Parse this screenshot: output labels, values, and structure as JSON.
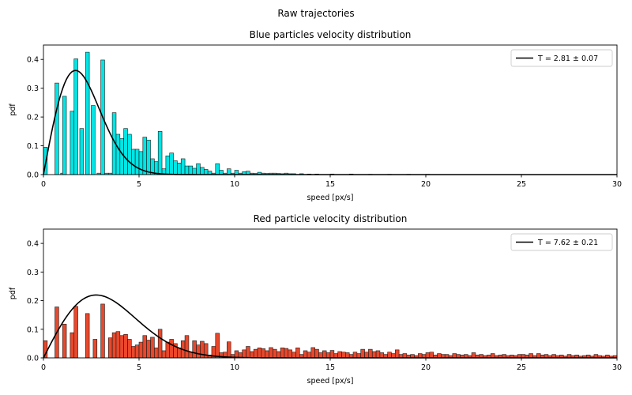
{
  "figure": {
    "title": "Raw trajectories"
  },
  "chart_data": [
    {
      "type": "bar",
      "title": "Blue particles velocity distribution",
      "xlabel": "speed [px/s]",
      "ylabel": "pdf",
      "xlim": [
        0,
        30
      ],
      "ylim": [
        0,
        0.45
      ],
      "xticks": [
        "0",
        "5",
        "10",
        "15",
        "20",
        "25",
        "30"
      ],
      "yticks": [
        "0.0",
        "0.1",
        "0.2",
        "0.3",
        "0.4"
      ],
      "bar_color": "#00e5e5",
      "bin_width": 0.2,
      "bins": [
        [
          0.0,
          0.095
        ],
        [
          0.6,
          0.318
        ],
        [
          0.9,
          0.005
        ],
        [
          1.0,
          0.272
        ],
        [
          1.4,
          0.22
        ],
        [
          1.6,
          0.402
        ],
        [
          1.9,
          0.16
        ],
        [
          2.2,
          0.425
        ],
        [
          2.5,
          0.24
        ],
        [
          2.8,
          0.005
        ],
        [
          3.0,
          0.398
        ],
        [
          3.2,
          0.005
        ],
        [
          3.4,
          0.005
        ],
        [
          3.6,
          0.215
        ],
        [
          3.8,
          0.14
        ],
        [
          4.0,
          0.125
        ],
        [
          4.2,
          0.16
        ],
        [
          4.4,
          0.14
        ],
        [
          4.6,
          0.088
        ],
        [
          4.8,
          0.088
        ],
        [
          5.0,
          0.08
        ],
        [
          5.2,
          0.13
        ],
        [
          5.4,
          0.12
        ],
        [
          5.6,
          0.055
        ],
        [
          5.8,
          0.045
        ],
        [
          6.0,
          0.15
        ],
        [
          6.2,
          0.02
        ],
        [
          6.4,
          0.065
        ],
        [
          6.6,
          0.075
        ],
        [
          6.8,
          0.048
        ],
        [
          7.0,
          0.04
        ],
        [
          7.2,
          0.055
        ],
        [
          7.4,
          0.03
        ],
        [
          7.6,
          0.03
        ],
        [
          7.8,
          0.022
        ],
        [
          8.0,
          0.038
        ],
        [
          8.2,
          0.025
        ],
        [
          8.4,
          0.018
        ],
        [
          8.6,
          0.012
        ],
        [
          8.8,
          0.005
        ],
        [
          9.0,
          0.038
        ],
        [
          9.2,
          0.015
        ],
        [
          9.4,
          0.005
        ],
        [
          9.6,
          0.02
        ],
        [
          9.8,
          0.005
        ],
        [
          10.0,
          0.015
        ],
        [
          10.2,
          0.005
        ],
        [
          10.4,
          0.01
        ],
        [
          10.6,
          0.012
        ],
        [
          10.8,
          0.005
        ],
        [
          11.0,
          0.004
        ],
        [
          11.2,
          0.008
        ],
        [
          11.4,
          0.005
        ],
        [
          11.6,
          0.004
        ],
        [
          11.8,
          0.005
        ],
        [
          12.0,
          0.005
        ],
        [
          12.2,
          0.004
        ],
        [
          12.4,
          0.003
        ],
        [
          12.6,
          0.005
        ],
        [
          12.8,
          0.003
        ],
        [
          13.0,
          0.003
        ],
        [
          13.4,
          0.003
        ],
        [
          13.8,
          0.002
        ],
        [
          14.2,
          0.002
        ],
        [
          15.0,
          0.002
        ],
        [
          16.0,
          0.002
        ],
        [
          17.0,
          0.001
        ],
        [
          18.0,
          0.001
        ],
        [
          19.0,
          0.001
        ],
        [
          20.0,
          0.001
        ]
      ],
      "fit": {
        "T": 2.81,
        "legend_label": "T = 2.81 ± 0.07",
        "legend_pos": "upper right"
      }
    },
    {
      "type": "bar",
      "title": "Red particle velocity distribution",
      "xlabel": "speed [px/s]",
      "ylabel": "pdf",
      "xlim": [
        0,
        30
      ],
      "ylim": [
        0,
        0.45
      ],
      "xticks": [
        "0",
        "5",
        "10",
        "15",
        "20",
        "25",
        "30"
      ],
      "yticks": [
        "0.0",
        "0.1",
        "0.2",
        "0.3",
        "0.4"
      ],
      "bar_color": "#e8482c",
      "bin_width": 0.2,
      "bins": [
        [
          0.0,
          0.06
        ],
        [
          0.6,
          0.178
        ],
        [
          1.0,
          0.118
        ],
        [
          1.4,
          0.088
        ],
        [
          1.6,
          0.18
        ],
        [
          2.2,
          0.155
        ],
        [
          2.6,
          0.065
        ],
        [
          3.0,
          0.188
        ],
        [
          3.4,
          0.07
        ],
        [
          3.6,
          0.088
        ],
        [
          3.8,
          0.092
        ],
        [
          4.0,
          0.078
        ],
        [
          4.2,
          0.082
        ],
        [
          4.4,
          0.065
        ],
        [
          4.6,
          0.04
        ],
        [
          4.8,
          0.045
        ],
        [
          5.0,
          0.055
        ],
        [
          5.2,
          0.078
        ],
        [
          5.4,
          0.062
        ],
        [
          5.6,
          0.072
        ],
        [
          5.8,
          0.035
        ],
        [
          6.0,
          0.1
        ],
        [
          6.2,
          0.025
        ],
        [
          6.4,
          0.055
        ],
        [
          6.6,
          0.065
        ],
        [
          6.8,
          0.05
        ],
        [
          7.0,
          0.035
        ],
        [
          7.2,
          0.06
        ],
        [
          7.4,
          0.078
        ],
        [
          7.6,
          0.02
        ],
        [
          7.8,
          0.06
        ],
        [
          8.0,
          0.045
        ],
        [
          8.2,
          0.058
        ],
        [
          8.4,
          0.05
        ],
        [
          8.6,
          0.01
        ],
        [
          8.8,
          0.04
        ],
        [
          9.0,
          0.086
        ],
        [
          9.2,
          0.018
        ],
        [
          9.4,
          0.02
        ],
        [
          9.6,
          0.056
        ],
        [
          9.8,
          0.012
        ],
        [
          10.0,
          0.025
        ],
        [
          10.2,
          0.018
        ],
        [
          10.4,
          0.028
        ],
        [
          10.6,
          0.04
        ],
        [
          10.8,
          0.022
        ],
        [
          11.0,
          0.03
        ],
        [
          11.2,
          0.035
        ],
        [
          11.4,
          0.032
        ],
        [
          11.6,
          0.025
        ],
        [
          11.8,
          0.036
        ],
        [
          12.0,
          0.03
        ],
        [
          12.2,
          0.022
        ],
        [
          12.4,
          0.035
        ],
        [
          12.6,
          0.033
        ],
        [
          12.8,
          0.028
        ],
        [
          13.0,
          0.02
        ],
        [
          13.2,
          0.035
        ],
        [
          13.4,
          0.012
        ],
        [
          13.6,
          0.025
        ],
        [
          13.8,
          0.02
        ],
        [
          14.0,
          0.036
        ],
        [
          14.2,
          0.03
        ],
        [
          14.4,
          0.018
        ],
        [
          14.6,
          0.025
        ],
        [
          14.8,
          0.018
        ],
        [
          15.0,
          0.026
        ],
        [
          15.2,
          0.015
        ],
        [
          15.4,
          0.022
        ],
        [
          15.6,
          0.02
        ],
        [
          15.8,
          0.018
        ],
        [
          16.0,
          0.012
        ],
        [
          16.2,
          0.02
        ],
        [
          16.4,
          0.015
        ],
        [
          16.6,
          0.03
        ],
        [
          16.8,
          0.02
        ],
        [
          17.0,
          0.03
        ],
        [
          17.2,
          0.022
        ],
        [
          17.4,
          0.025
        ],
        [
          17.6,
          0.018
        ],
        [
          17.8,
          0.012
        ],
        [
          18.0,
          0.02
        ],
        [
          18.2,
          0.015
        ],
        [
          18.4,
          0.028
        ],
        [
          18.6,
          0.012
        ],
        [
          18.8,
          0.015
        ],
        [
          19.0,
          0.01
        ],
        [
          19.2,
          0.012
        ],
        [
          19.4,
          0.008
        ],
        [
          19.6,
          0.015
        ],
        [
          19.8,
          0.012
        ],
        [
          20.0,
          0.018
        ],
        [
          20.2,
          0.02
        ],
        [
          20.4,
          0.01
        ],
        [
          20.6,
          0.015
        ],
        [
          20.8,
          0.012
        ],
        [
          21.0,
          0.012
        ],
        [
          21.2,
          0.008
        ],
        [
          21.4,
          0.015
        ],
        [
          21.6,
          0.012
        ],
        [
          21.8,
          0.01
        ],
        [
          22.0,
          0.012
        ],
        [
          22.2,
          0.008
        ],
        [
          22.4,
          0.018
        ],
        [
          22.6,
          0.01
        ],
        [
          22.8,
          0.012
        ],
        [
          23.0,
          0.008
        ],
        [
          23.2,
          0.01
        ],
        [
          23.4,
          0.015
        ],
        [
          23.6,
          0.008
        ],
        [
          23.8,
          0.01
        ],
        [
          24.0,
          0.012
        ],
        [
          24.2,
          0.008
        ],
        [
          24.4,
          0.01
        ],
        [
          24.6,
          0.008
        ],
        [
          24.8,
          0.012
        ],
        [
          25.0,
          0.012
        ],
        [
          25.2,
          0.01
        ],
        [
          25.4,
          0.015
        ],
        [
          25.6,
          0.008
        ],
        [
          25.8,
          0.015
        ],
        [
          26.0,
          0.01
        ],
        [
          26.2,
          0.012
        ],
        [
          26.4,
          0.008
        ],
        [
          26.6,
          0.012
        ],
        [
          26.8,
          0.008
        ],
        [
          27.0,
          0.01
        ],
        [
          27.2,
          0.006
        ],
        [
          27.4,
          0.012
        ],
        [
          27.6,
          0.008
        ],
        [
          27.8,
          0.01
        ],
        [
          28.0,
          0.006
        ],
        [
          28.2,
          0.008
        ],
        [
          28.4,
          0.01
        ],
        [
          28.6,
          0.006
        ],
        [
          28.8,
          0.012
        ],
        [
          29.0,
          0.008
        ],
        [
          29.2,
          0.006
        ],
        [
          29.4,
          0.01
        ],
        [
          29.6,
          0.006
        ],
        [
          29.8,
          0.008
        ]
      ],
      "fit": {
        "T": 7.62,
        "legend_label": "T = 7.62 ± 0.21",
        "legend_pos": "upper right"
      }
    }
  ]
}
